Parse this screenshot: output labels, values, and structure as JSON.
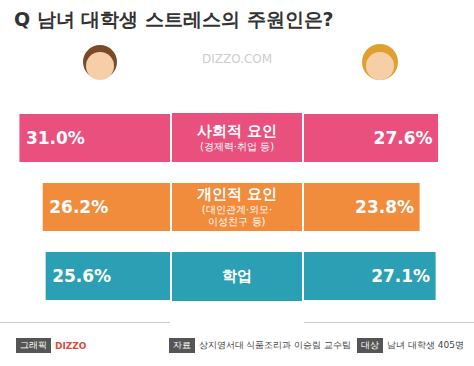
{
  "chart_data": {
    "type": "bar",
    "title": "Q 남녀 대학생 스트레스의 주원인은?",
    "watermark": "DIZZO.COM",
    "orientation": "horizontal",
    "categories": [
      "사회적 요인",
      "개인적 요인",
      "학업"
    ],
    "category_notes": [
      "(경제력·취업 등)",
      "(대인관계·외모·\n이성친구 등)",
      null
    ],
    "colors": [
      "#e9507d",
      "#f08c3c",
      "#2b9fb3"
    ],
    "series": [
      {
        "values": [
          31.0,
          26.2,
          25.6
        ],
        "value_labels": [
          "31.0%",
          "26.2%",
          "25.6%"
        ]
      },
      {
        "values": [
          27.6,
          23.8,
          27.1
        ],
        "value_labels": [
          "27.6%",
          "23.8%",
          "27.1%"
        ]
      }
    ],
    "xlim": [
      0,
      35
    ],
    "data_labels": true,
    "tick_labels": false,
    "notes": [
      {
        "label": "그래픽",
        "text": "DIZZO"
      },
      {
        "label": "자료",
        "text": "상지영서대 식품조리과 이승림 교수팀"
      },
      {
        "label": "대상",
        "text": "남녀 대학생 405명"
      }
    ]
  }
}
